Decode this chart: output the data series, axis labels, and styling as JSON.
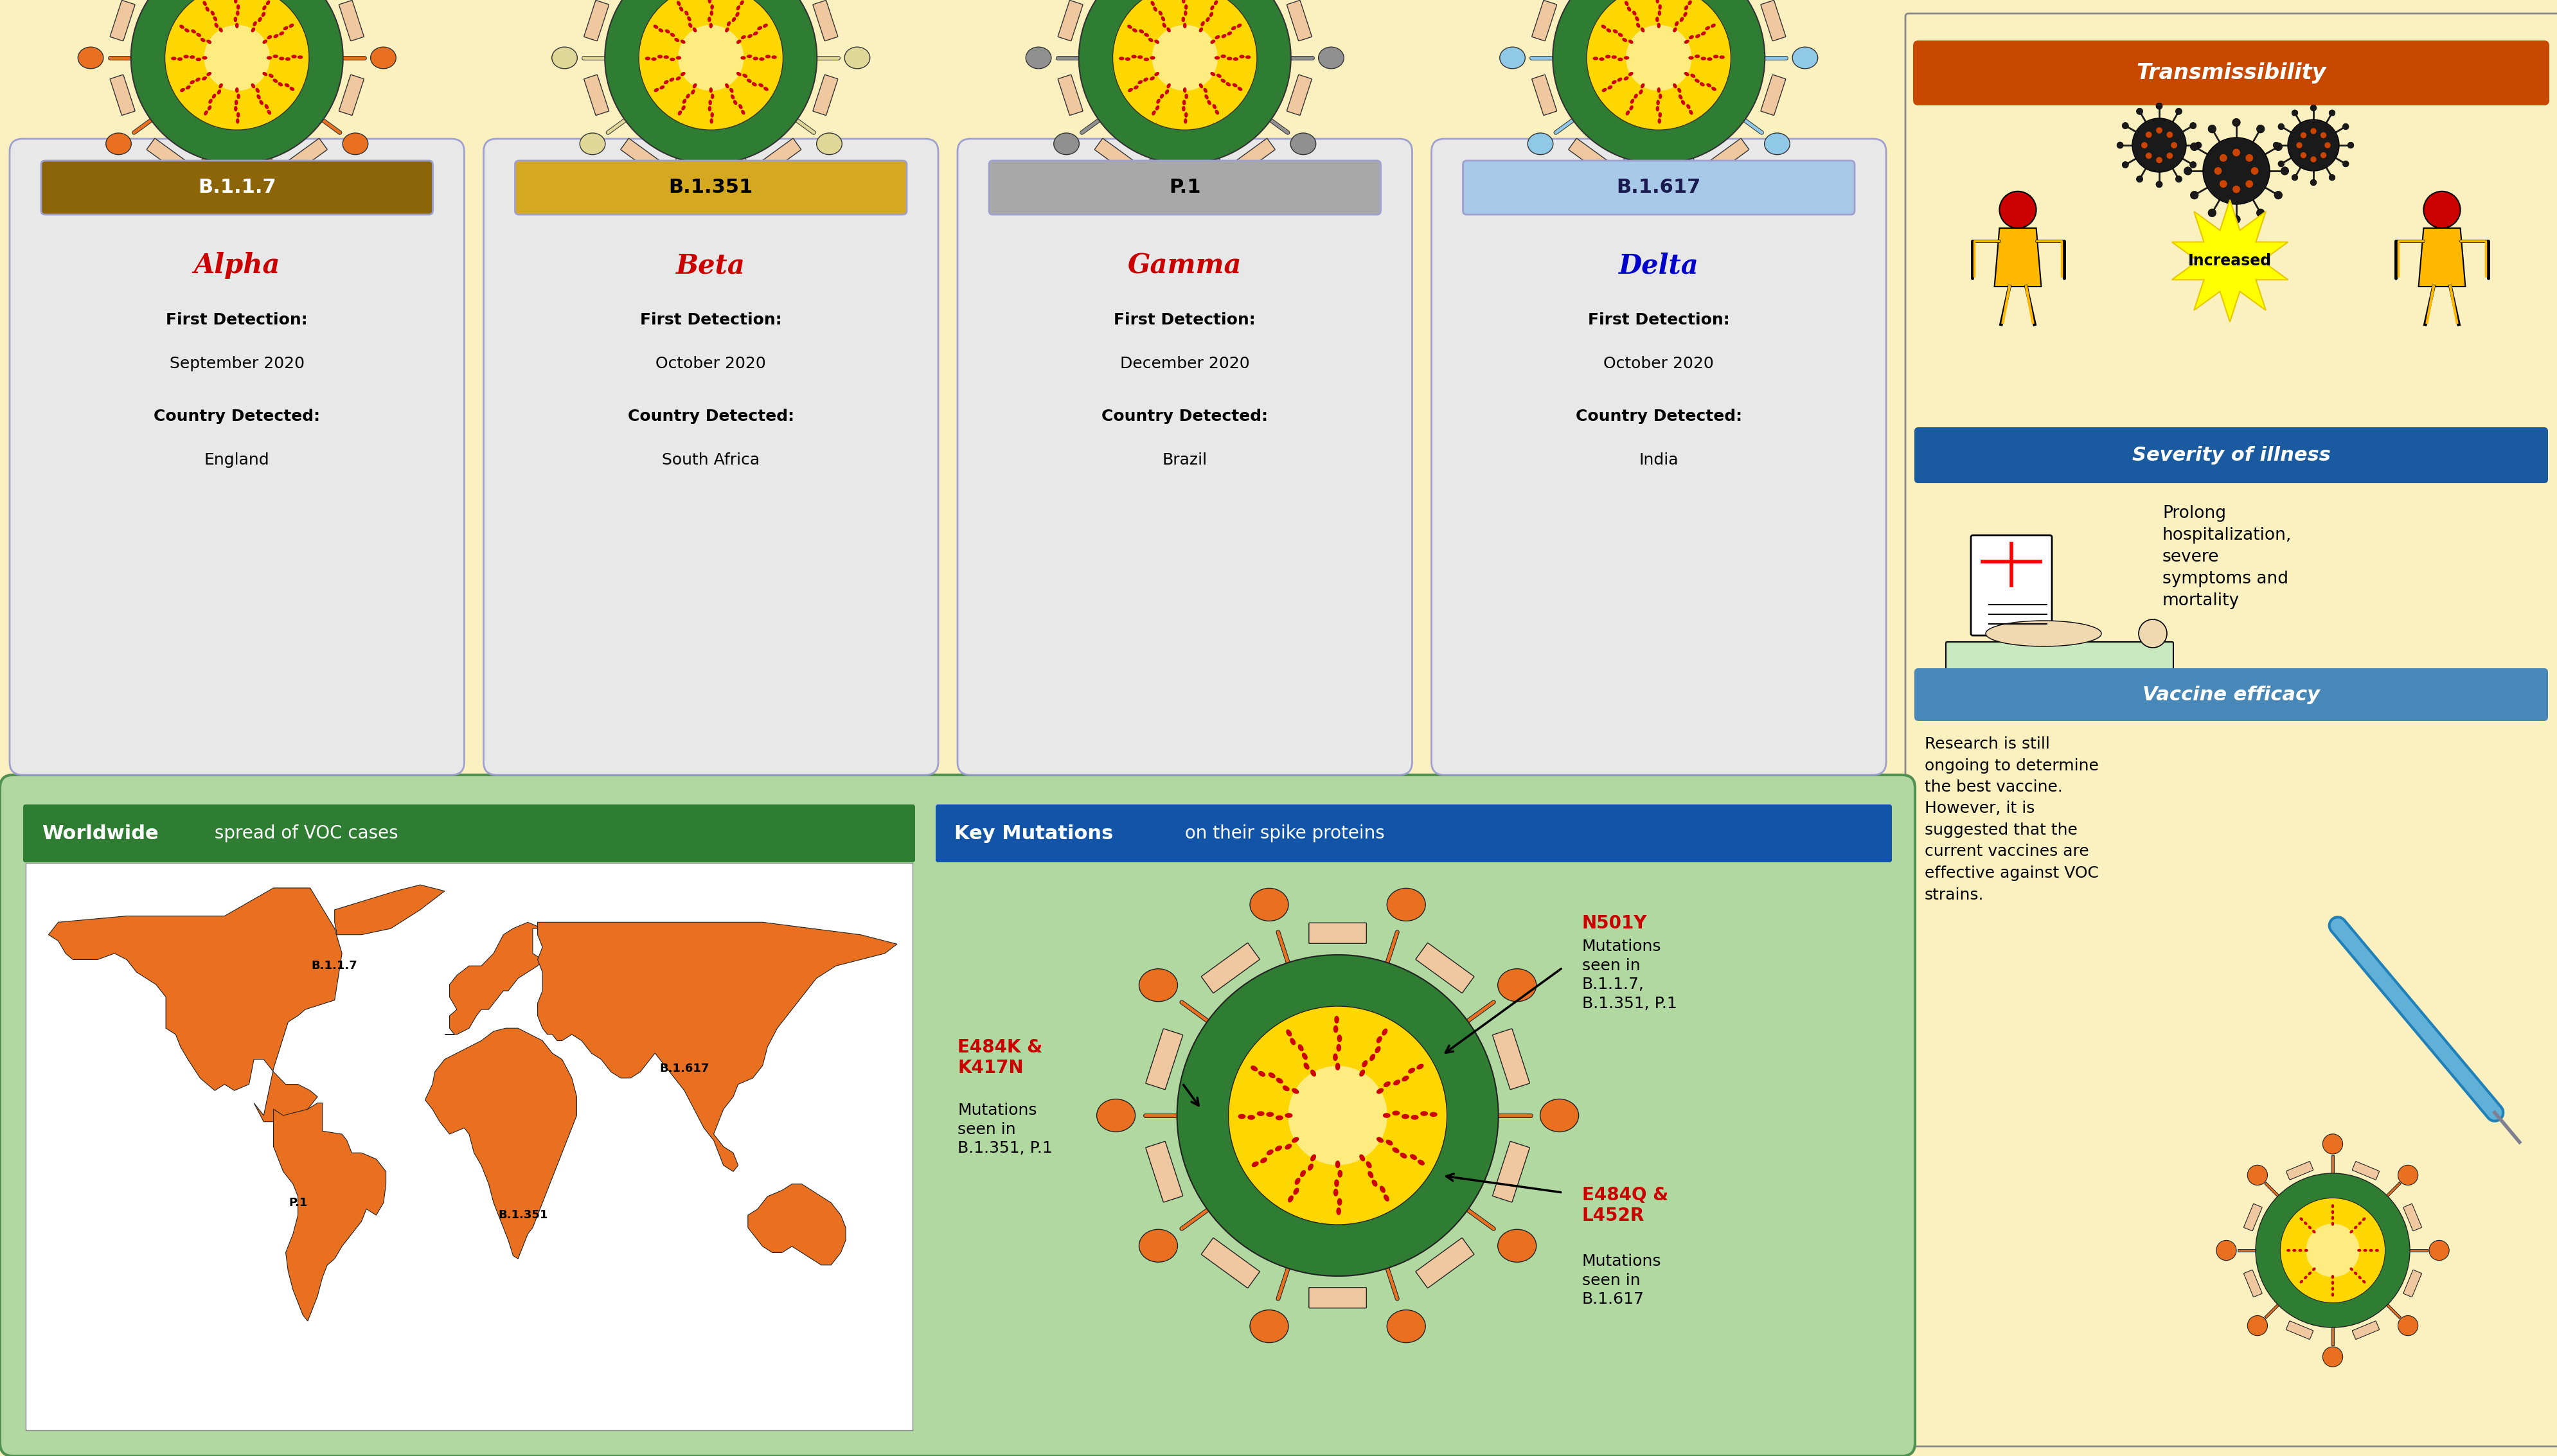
{
  "bg_color": "#FAF0C0",
  "variants": [
    {
      "code": "B.1.1.7",
      "code_bg": "#8B6508",
      "code_border": "#A07820",
      "code_text": "white",
      "name": "Alpha",
      "name_color": "#CC0000",
      "detection": "September 2020",
      "country": "England",
      "spike_color": "#E87020",
      "spike_outline": "#333333",
      "petal_color": "#F0C8A0",
      "ring_color": "#2E7D32",
      "inner_color": "#FFD700",
      "inner_center": "#FFEC80",
      "rna_color": "#CC0000",
      "rna_dot": "#CC0000",
      "box_bg": "#E8E8E8",
      "box_border": "#A0A0D0"
    },
    {
      "code": "B.1.351",
      "code_bg": "#D4A820",
      "code_border": "#C09010",
      "code_text": "black",
      "name": "Beta",
      "name_color": "#CC0000",
      "detection": "October 2020",
      "country": "South Africa",
      "spike_color": "#E0D898",
      "spike_outline": "#333333",
      "petal_color": "#F0C8A0",
      "ring_color": "#2E7D32",
      "inner_color": "#FFD700",
      "inner_center": "#FFEC80",
      "rna_color": "#CC0000",
      "rna_dot": "#CC0000",
      "box_bg": "#E8E8E8",
      "box_border": "#A0A0D0"
    },
    {
      "code": "P.1",
      "code_bg": "#A8A8A8",
      "code_border": "#808080",
      "code_text": "black",
      "name": "Gamma",
      "name_color": "#CC0000",
      "detection": "December 2020",
      "country": "Brazil",
      "spike_color": "#909090",
      "spike_outline": "#333333",
      "petal_color": "#F0C8A0",
      "ring_color": "#2E7D32",
      "inner_color": "#FFD700",
      "inner_center": "#FFEC80",
      "rna_color": "#CC0000",
      "rna_dot": "#CC0000",
      "box_bg": "#E8E8E8",
      "box_border": "#A0A0D0"
    },
    {
      "code": "B.1.617",
      "code_bg": "#A8C8E8",
      "code_border": "#7090B0",
      "code_text": "#1a1a4e",
      "name": "Delta",
      "name_color": "#0000CC",
      "detection": "October 2020",
      "country": "India",
      "spike_color": "#90C8E8",
      "spike_outline": "#333333",
      "petal_color": "#F0C8A0",
      "ring_color": "#2E7D32",
      "inner_color": "#FFD700",
      "inner_center": "#FFEC80",
      "rna_color": "#CC0000",
      "rna_dot": "#CC0000",
      "box_bg": "#E8E8E8",
      "box_border": "#A0A0D0"
    }
  ],
  "transmissibility_header": "Transmissibility",
  "transmissibility_bg": "#C84800",
  "transmissibility_text": "white",
  "increased_text": "Increased",
  "severity_header": "Severity of illness",
  "severity_bg": "#1A5AA0",
  "severity_text": "white",
  "severity_desc": "Prolong\nhospitalization,\nsevere\nsymptoms and\nmortality",
  "vaccine_header": "Vaccine efficacy",
  "vaccine_bg": "#4888B8",
  "vaccine_text": "white",
  "vaccine_desc": "Research is still\nongoing to determine\nthe best vaccine.\nHowever, it is\nsuggested that the\ncurrent vaccines are\neffective against VOC\nstrains.",
  "worldwide_title_bold": "Worldwide",
  "worldwide_title_rest": " spread of VOC cases",
  "worldwide_bg": "#2E7D32",
  "worldwide_text": "white",
  "mutations_title_bold": "Key Mutations",
  "mutations_title_rest": " on their spike proteins",
  "mutations_bg": "#1255A8",
  "mutations_text": "white",
  "bottom_panel_bg": "#B0D8A0",
  "bottom_panel_border": "#509050",
  "mutation_labels": {
    "n501y_title": "N501Y",
    "n501y_body": "Mutations\nseen in\nB.1.1.7,\nB.1.351, P.1",
    "e484k_title": "E484K &\nK417N",
    "e484k_body": "Mutations\nseen in\nB.1.351, P.1",
    "e484q_title": "E484Q &\nL452R",
    "e484q_body": "Mutations\nseen in\nB.1.617"
  }
}
